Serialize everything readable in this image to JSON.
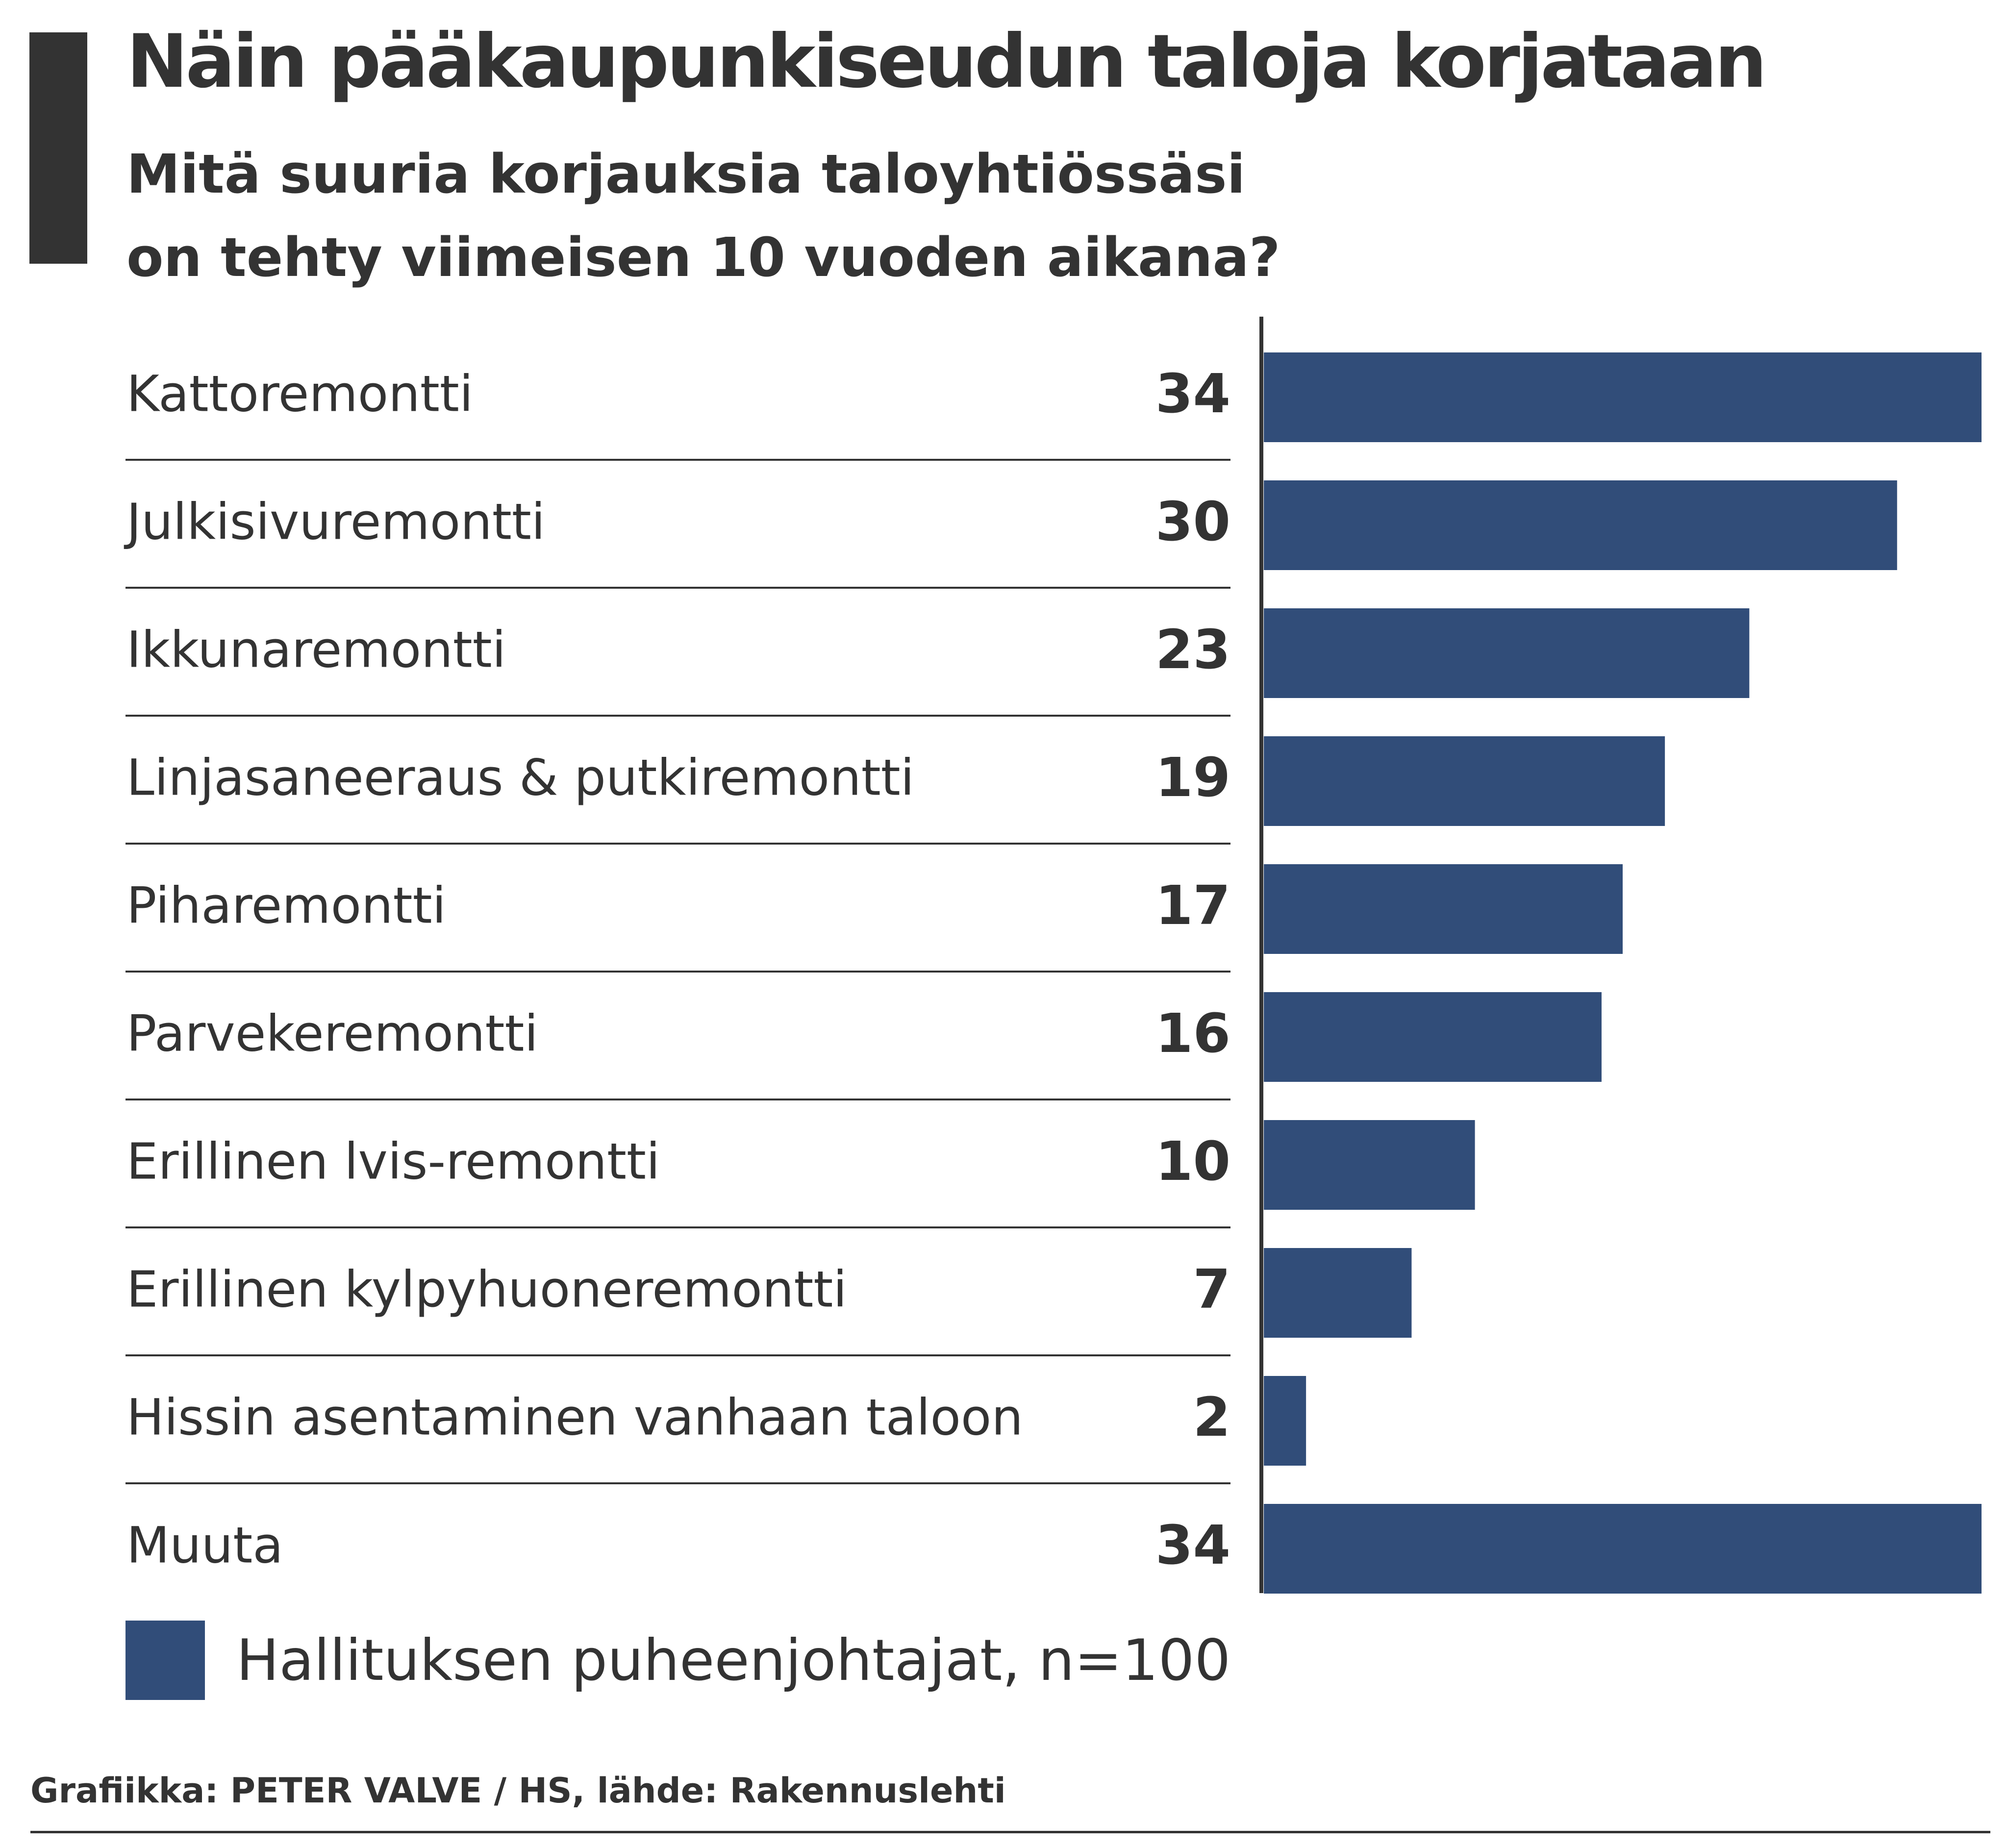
{
  "header": {
    "title": "Näin pääkaupunkiseudun taloja korjataan",
    "subtitle_line1": "Mitä suuria korjauksia taloyhtiössäsi",
    "subtitle_line2": "on tehty viimeisen 10 vuoden aikana?"
  },
  "legend": {
    "label": "Hallituksen puheenjohtajat, n=100",
    "color": "#314d79"
  },
  "footer": {
    "source": "Grafiikka: PETER VALVE / HS, lähde: Rakennuslehti"
  },
  "colors": {
    "bar": "#314d79",
    "text": "#333333",
    "rule": "#333333"
  },
  "chart_data": {
    "type": "bar",
    "orientation": "horizontal",
    "title": "Näin pääkaupunkiseudun taloja korjataan",
    "subtitle": "Mitä suuria korjauksia taloyhtiössäsi on tehty viimeisen 10 vuoden aikana?",
    "categories": [
      "Kattoremontti",
      "Julkisivuremontti",
      "Ikkunaremontti",
      "Linjasaneeraus & putkiremontti",
      "Piharemontti",
      "Parvekeremontti",
      "Erillinen lvis-remontti",
      "Erillinen kylpyhuoneremontti",
      "Hissin asentaminen vanhaan taloon",
      "Muuta"
    ],
    "series": [
      {
        "name": "Hallituksen puheenjohtajat, n=100",
        "values": [
          34,
          30,
          23,
          19,
          17,
          16,
          10,
          7,
          2,
          34
        ]
      }
    ],
    "xlim": [
      0,
      34
    ],
    "grid": false,
    "legend_position": "bottom-left",
    "data_labels": true
  }
}
